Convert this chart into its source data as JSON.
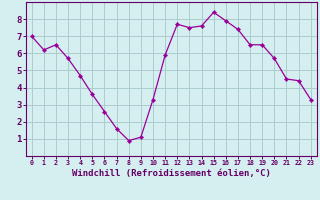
{
  "x": [
    0,
    1,
    2,
    3,
    4,
    5,
    6,
    7,
    8,
    9,
    10,
    11,
    12,
    13,
    14,
    15,
    16,
    17,
    18,
    19,
    20,
    21,
    22,
    23
  ],
  "y": [
    7.0,
    6.2,
    6.5,
    5.7,
    4.7,
    3.6,
    2.6,
    1.6,
    0.9,
    1.1,
    3.3,
    5.9,
    7.7,
    7.5,
    7.6,
    8.4,
    7.9,
    7.4,
    6.5,
    6.5,
    5.7,
    4.5,
    4.4,
    3.3
  ],
  "line_color": "#990099",
  "marker": "D",
  "marker_size": 2.2,
  "bg_color": "#d5eef0",
  "grid_color": "#aacccc",
  "axis_color": "#660066",
  "xlabel": "Windchill (Refroidissement éolien,°C)",
  "xlabel_fontsize": 6.5,
  "tick_fontsize": 6.5,
  "xlim": [
    -0.5,
    23.5
  ],
  "ylim": [
    0,
    9
  ],
  "yticks": [
    1,
    2,
    3,
    4,
    5,
    6,
    7,
    8
  ],
  "xticks": [
    0,
    1,
    2,
    3,
    4,
    5,
    6,
    7,
    8,
    9,
    10,
    11,
    12,
    13,
    14,
    15,
    16,
    17,
    18,
    19,
    20,
    21,
    22,
    23
  ]
}
